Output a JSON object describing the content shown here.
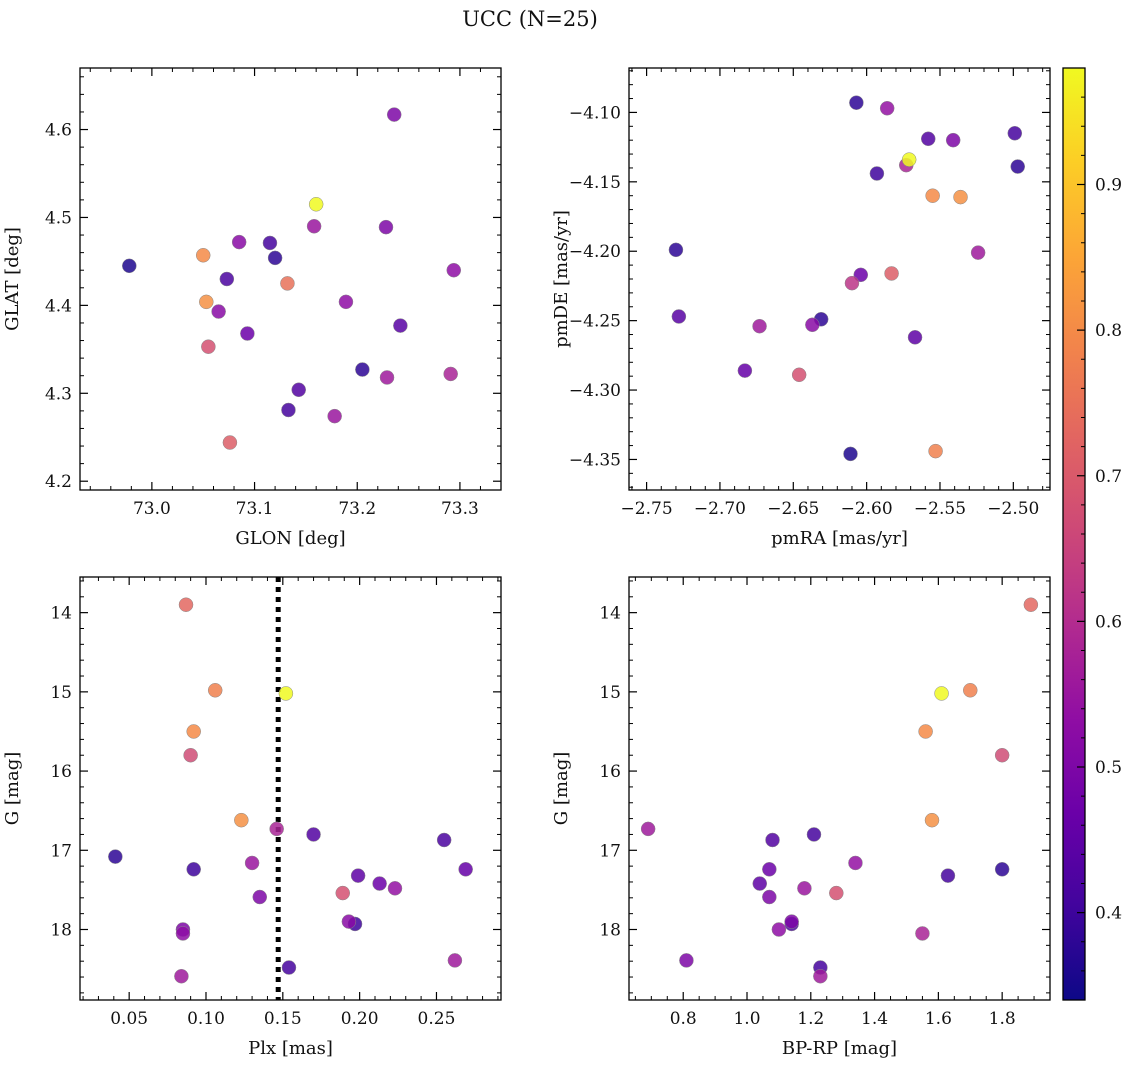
{
  "figure": {
    "title": "UCC (N=25)"
  },
  "colors": {
    "colormap": "plasma",
    "background": "#ffffff",
    "axes": "#000000",
    "marker_edge": "#888888",
    "vline": "#000000"
  },
  "colorbar": {
    "range": [
      0.34,
      0.98
    ],
    "ticks": [
      0.4,
      0.5,
      0.6,
      0.7,
      0.8,
      0.9
    ],
    "tick_labels": [
      "0.4",
      "0.5",
      "0.6",
      "0.7",
      "0.8",
      "0.9"
    ]
  },
  "chart_data": [
    {
      "type": "scatter",
      "title": "",
      "xlabel": "GLON [deg]",
      "ylabel": "GLAT [deg]",
      "xlim": [
        72.93,
        73.34
      ],
      "ylim": [
        4.19,
        4.67
      ],
      "y_inverted": false,
      "xticks": [
        73.0,
        73.1,
        73.2,
        73.3
      ],
      "xtick_labels": [
        "73.0",
        "73.1",
        "73.2",
        "73.3"
      ],
      "yticks": [
        4.2,
        4.3,
        4.4,
        4.5,
        4.6
      ],
      "ytick_labels": [
        "4.2",
        "4.3",
        "4.4",
        "4.5",
        "4.6"
      ],
      "x_minor": 0.02,
      "y_minor": 0.02,
      "points": [
        {
          "x": 72.978,
          "y": 4.445,
          "c": 0.36
        },
        {
          "x": 73.05,
          "y": 4.457,
          "c": 0.8
        },
        {
          "x": 73.053,
          "y": 4.404,
          "c": 0.81
        },
        {
          "x": 73.055,
          "y": 4.353,
          "c": 0.68
        },
        {
          "x": 73.065,
          "y": 4.393,
          "c": 0.52
        },
        {
          "x": 73.073,
          "y": 4.43,
          "c": 0.42
        },
        {
          "x": 73.076,
          "y": 4.244,
          "c": 0.71
        },
        {
          "x": 73.085,
          "y": 4.472,
          "c": 0.52
        },
        {
          "x": 73.093,
          "y": 4.368,
          "c": 0.47
        },
        {
          "x": 73.115,
          "y": 4.471,
          "c": 0.41
        },
        {
          "x": 73.12,
          "y": 4.454,
          "c": 0.38
        },
        {
          "x": 73.132,
          "y": 4.425,
          "c": 0.75
        },
        {
          "x": 73.133,
          "y": 4.281,
          "c": 0.41
        },
        {
          "x": 73.143,
          "y": 4.304,
          "c": 0.43
        },
        {
          "x": 73.158,
          "y": 4.49,
          "c": 0.55
        },
        {
          "x": 73.16,
          "y": 4.515,
          "c": 0.98
        },
        {
          "x": 73.178,
          "y": 4.274,
          "c": 0.55
        },
        {
          "x": 73.189,
          "y": 4.404,
          "c": 0.53
        },
        {
          "x": 73.205,
          "y": 4.327,
          "c": 0.38
        },
        {
          "x": 73.228,
          "y": 4.489,
          "c": 0.5
        },
        {
          "x": 73.229,
          "y": 4.318,
          "c": 0.56
        },
        {
          "x": 73.236,
          "y": 4.617,
          "c": 0.5
        },
        {
          "x": 73.242,
          "y": 4.377,
          "c": 0.44
        },
        {
          "x": 73.291,
          "y": 4.322,
          "c": 0.58
        },
        {
          "x": 73.294,
          "y": 4.44,
          "c": 0.53
        }
      ]
    },
    {
      "type": "scatter",
      "title": "",
      "xlabel": "pmRA [mas/yr]",
      "ylabel": "pmDE [mas/yr]",
      "xlim": [
        -2.762,
        -2.475
      ],
      "ylim": [
        -4.372,
        -4.068
      ],
      "y_inverted": false,
      "xticks": [
        -2.75,
        -2.7,
        -2.65,
        -2.6,
        -2.55,
        -2.5
      ],
      "xtick_labels": [
        "−2.75",
        "−2.70",
        "−2.65",
        "−2.60",
        "−2.55",
        "−2.50"
      ],
      "yticks": [
        -4.35,
        -4.3,
        -4.25,
        -4.2,
        -4.15,
        -4.1
      ],
      "ytick_labels": [
        "−4.35",
        "−4.30",
        "−4.25",
        "−4.20",
        "−4.15",
        "−4.10"
      ],
      "x_minor": 0.01,
      "y_minor": 0.01,
      "points": [
        {
          "x": -2.73,
          "y": -4.199,
          "c": 0.38
        },
        {
          "x": -2.728,
          "y": -4.247,
          "c": 0.44
        },
        {
          "x": -2.683,
          "y": -4.286,
          "c": 0.46
        },
        {
          "x": -2.673,
          "y": -4.254,
          "c": 0.56
        },
        {
          "x": -2.646,
          "y": -4.289,
          "c": 0.68
        },
        {
          "x": -2.637,
          "y": -4.253,
          "c": 0.52
        },
        {
          "x": -2.631,
          "y": -4.249,
          "c": 0.38
        },
        {
          "x": -2.611,
          "y": -4.346,
          "c": 0.36
        },
        {
          "x": -2.61,
          "y": -4.223,
          "c": 0.62
        },
        {
          "x": -2.607,
          "y": -4.093,
          "c": 0.38
        },
        {
          "x": -2.604,
          "y": -4.217,
          "c": 0.47
        },
        {
          "x": -2.586,
          "y": -4.097,
          "c": 0.54
        },
        {
          "x": -2.583,
          "y": -4.216,
          "c": 0.71
        },
        {
          "x": -2.593,
          "y": -4.144,
          "c": 0.4
        },
        {
          "x": -2.573,
          "y": -4.138,
          "c": 0.58
        },
        {
          "x": -2.571,
          "y": -4.134,
          "c": 0.98
        },
        {
          "x": -2.567,
          "y": -4.262,
          "c": 0.45
        },
        {
          "x": -2.558,
          "y": -4.119,
          "c": 0.43
        },
        {
          "x": -2.555,
          "y": -4.16,
          "c": 0.8
        },
        {
          "x": -2.553,
          "y": -4.344,
          "c": 0.78
        },
        {
          "x": -2.541,
          "y": -4.12,
          "c": 0.5
        },
        {
          "x": -2.536,
          "y": -4.161,
          "c": 0.81
        },
        {
          "x": -2.524,
          "y": -4.201,
          "c": 0.56
        },
        {
          "x": -2.499,
          "y": -4.115,
          "c": 0.41
        },
        {
          "x": -2.497,
          "y": -4.139,
          "c": 0.38
        }
      ]
    },
    {
      "type": "scatter",
      "title": "",
      "xlabel": "Plx [mas]",
      "ylabel": "G [mag]",
      "xlim": [
        0.018,
        0.292
      ],
      "ylim": [
        13.55,
        18.89
      ],
      "y_inverted": true,
      "xticks": [
        0.05,
        0.1,
        0.15,
        0.2,
        0.25
      ],
      "xtick_labels": [
        "0.05",
        "0.10",
        "0.15",
        "0.20",
        "0.25"
      ],
      "yticks": [
        14,
        15,
        16,
        17,
        18
      ],
      "ytick_labels": [
        "14",
        "15",
        "16",
        "17",
        "18"
      ],
      "x_minor": 0.01,
      "y_minor": 0.2,
      "vline_x": 0.147,
      "points": [
        {
          "x": 0.041,
          "y": 17.08,
          "c": 0.38
        },
        {
          "x": 0.084,
          "y": 18.59,
          "c": 0.56
        },
        {
          "x": 0.085,
          "y": 18.0,
          "c": 0.5
        },
        {
          "x": 0.085,
          "y": 18.05,
          "c": 0.53
        },
        {
          "x": 0.087,
          "y": 13.9,
          "c": 0.73
        },
        {
          "x": 0.09,
          "y": 15.8,
          "c": 0.67
        },
        {
          "x": 0.092,
          "y": 15.5,
          "c": 0.8
        },
        {
          "x": 0.092,
          "y": 17.24,
          "c": 0.4
        },
        {
          "x": 0.106,
          "y": 14.98,
          "c": 0.78
        },
        {
          "x": 0.123,
          "y": 16.62,
          "c": 0.81
        },
        {
          "x": 0.13,
          "y": 17.16,
          "c": 0.55
        },
        {
          "x": 0.135,
          "y": 17.59,
          "c": 0.5
        },
        {
          "x": 0.146,
          "y": 16.73,
          "c": 0.58
        },
        {
          "x": 0.152,
          "y": 15.02,
          "c": 0.98
        },
        {
          "x": 0.154,
          "y": 18.48,
          "c": 0.41
        },
        {
          "x": 0.17,
          "y": 16.8,
          "c": 0.43
        },
        {
          "x": 0.189,
          "y": 17.54,
          "c": 0.68
        },
        {
          "x": 0.193,
          "y": 17.9,
          "c": 0.52
        },
        {
          "x": 0.197,
          "y": 17.93,
          "c": 0.4
        },
        {
          "x": 0.199,
          "y": 17.32,
          "c": 0.45
        },
        {
          "x": 0.213,
          "y": 17.42,
          "c": 0.47
        },
        {
          "x": 0.223,
          "y": 17.48,
          "c": 0.54
        },
        {
          "x": 0.255,
          "y": 16.87,
          "c": 0.42
        },
        {
          "x": 0.262,
          "y": 18.39,
          "c": 0.56
        },
        {
          "x": 0.269,
          "y": 17.24,
          "c": 0.46
        }
      ]
    },
    {
      "type": "scatter",
      "title": "",
      "xlabel": "BP-RP [mag]",
      "ylabel": "G [mag]",
      "xlim": [
        0.63,
        1.95
      ],
      "ylim": [
        13.55,
        18.89
      ],
      "y_inverted": true,
      "xticks": [
        0.8,
        1.0,
        1.2,
        1.4,
        1.6,
        1.8
      ],
      "xtick_labels": [
        "0.8",
        "1.0",
        "1.2",
        "1.4",
        "1.6",
        "1.8"
      ],
      "yticks": [
        14,
        15,
        16,
        17,
        18
      ],
      "ytick_labels": [
        "14",
        "15",
        "16",
        "17",
        "18"
      ],
      "x_minor": 0.05,
      "y_minor": 0.2,
      "points": [
        {
          "x": 0.69,
          "y": 16.73,
          "c": 0.56
        },
        {
          "x": 0.81,
          "y": 18.39,
          "c": 0.5
        },
        {
          "x": 1.04,
          "y": 17.42,
          "c": 0.45
        },
        {
          "x": 1.07,
          "y": 17.24,
          "c": 0.47
        },
        {
          "x": 1.07,
          "y": 17.59,
          "c": 0.5
        },
        {
          "x": 1.08,
          "y": 16.87,
          "c": 0.43
        },
        {
          "x": 1.1,
          "y": 18.0,
          "c": 0.53
        },
        {
          "x": 1.14,
          "y": 17.9,
          "c": 0.5
        },
        {
          "x": 1.14,
          "y": 17.93,
          "c": 0.42
        },
        {
          "x": 1.18,
          "y": 17.48,
          "c": 0.55
        },
        {
          "x": 1.21,
          "y": 16.8,
          "c": 0.41
        },
        {
          "x": 1.23,
          "y": 18.48,
          "c": 0.41
        },
        {
          "x": 1.23,
          "y": 18.59,
          "c": 0.56
        },
        {
          "x": 1.28,
          "y": 17.54,
          "c": 0.68
        },
        {
          "x": 1.34,
          "y": 17.16,
          "c": 0.54
        },
        {
          "x": 1.55,
          "y": 18.05,
          "c": 0.58
        },
        {
          "x": 1.56,
          "y": 15.5,
          "c": 0.8
        },
        {
          "x": 1.58,
          "y": 16.62,
          "c": 0.81
        },
        {
          "x": 1.61,
          "y": 15.02,
          "c": 0.98
        },
        {
          "x": 1.63,
          "y": 17.32,
          "c": 0.41
        },
        {
          "x": 1.7,
          "y": 14.98,
          "c": 0.78
        },
        {
          "x": 1.8,
          "y": 15.8,
          "c": 0.67
        },
        {
          "x": 1.8,
          "y": 17.24,
          "c": 0.38
        },
        {
          "x": 1.89,
          "y": 13.9,
          "c": 0.73
        }
      ]
    }
  ]
}
